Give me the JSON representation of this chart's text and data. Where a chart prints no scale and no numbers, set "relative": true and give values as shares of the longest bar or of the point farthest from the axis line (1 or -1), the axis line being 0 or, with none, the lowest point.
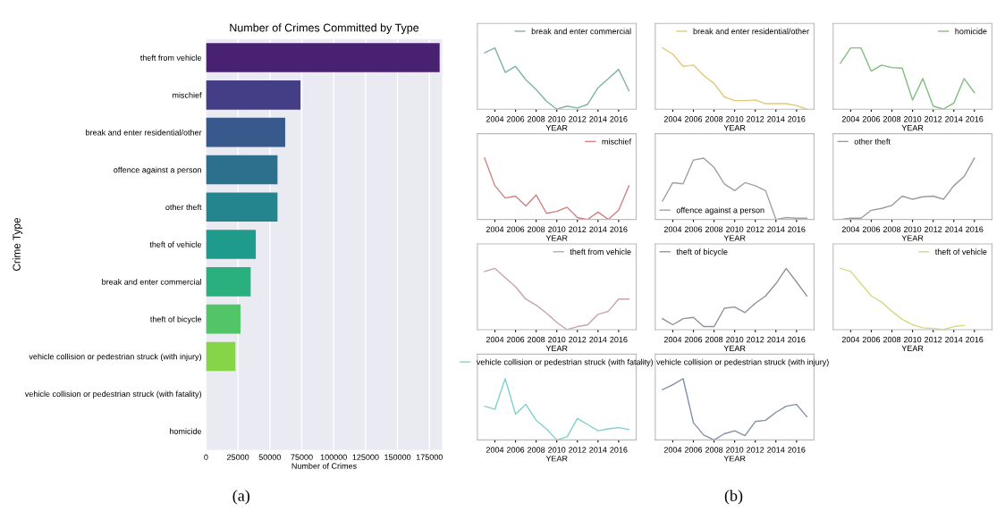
{
  "chart_data": [
    {
      "type": "bar",
      "orientation": "horizontal",
      "title": "Number of Crimes Committed by Type",
      "xlabel": "Number of Crimes",
      "ylabel": "Crime Type",
      "categories": [
        "theft from vehicle",
        "mischief",
        "break and enter residential/other",
        "offence against a person",
        "other theft",
        "theft of vehicle",
        "break and enter commercial",
        "theft of bicycle",
        "vehicle collision or pedestrian struck (with injury)",
        "vehicle collision or pedestrian struck (with fatality)",
        "homicide"
      ],
      "values": [
        183000,
        74000,
        62000,
        56000,
        56000,
        39000,
        35000,
        27000,
        23000,
        null,
        null
      ],
      "colors": [
        "#482173",
        "#433e85",
        "#38598c",
        "#2d708e",
        "#25858e",
        "#1e9b8a",
        "#2ab07f",
        "#52c569",
        "#86d549",
        "#c2df23",
        "#fde725"
      ],
      "xlim": [
        0,
        185000
      ],
      "xticks": [
        0,
        25000,
        50000,
        75000,
        100000,
        125000,
        150000,
        175000
      ],
      "grid": "x",
      "annotations": [
        "(a)"
      ]
    },
    {
      "type": "line",
      "relative": true,
      "xlabel": "YEAR",
      "xlim": [
        2002.3,
        2017.7
      ],
      "xticks": [
        2004,
        2006,
        2008,
        2010,
        2012,
        2014,
        2016
      ],
      "legend": "top right",
      "annotations": [
        "(b)"
      ],
      "series": [
        {
          "name": "break and enter commercial",
          "color": "#7fb3a8",
          "x": [
            2003,
            2004,
            2005,
            2006,
            2007,
            2008,
            2009,
            2010,
            2011,
            2012,
            2013,
            2014,
            2015,
            2016,
            2017
          ],
          "values": [
            0.92,
            1.0,
            0.6,
            0.7,
            0.48,
            0.32,
            0.13,
            0.0,
            0.05,
            0.02,
            0.08,
            0.35,
            0.5,
            0.65,
            0.3
          ]
        }
      ]
    },
    {
      "type": "line",
      "relative": true,
      "xlabel": "YEAR",
      "xlim": [
        2002.3,
        2017.7
      ],
      "xticks": [
        2004,
        2006,
        2008,
        2010,
        2012,
        2014,
        2016
      ],
      "legend": "top right",
      "series": [
        {
          "name": "break and enter residential/other",
          "color": "#e3c87a",
          "x": [
            2003,
            2004,
            2005,
            2006,
            2007,
            2008,
            2009,
            2010,
            2011,
            2012,
            2013,
            2014,
            2015,
            2016,
            2017
          ],
          "values": [
            1.0,
            0.9,
            0.7,
            0.72,
            0.55,
            0.42,
            0.2,
            0.14,
            0.14,
            0.15,
            0.09,
            0.09,
            0.09,
            0.06,
            0.0
          ]
        }
      ]
    },
    {
      "type": "line",
      "relative": true,
      "xlabel": "YEAR",
      "xlim": [
        2002.3,
        2017.7
      ],
      "xticks": [
        2004,
        2006,
        2008,
        2010,
        2012,
        2014,
        2016
      ],
      "legend": "top right",
      "series": [
        {
          "name": "homicide",
          "color": "#7fbf7f",
          "x": [
            2003,
            2004,
            2005,
            2006,
            2007,
            2008,
            2009,
            2010,
            2011,
            2012,
            2013,
            2014,
            2015,
            2016
          ],
          "values": [
            0.75,
            1.0,
            1.0,
            0.62,
            0.72,
            0.68,
            0.67,
            0.15,
            0.5,
            0.05,
            0.0,
            0.1,
            0.5,
            0.27
          ]
        }
      ]
    },
    {
      "type": "line",
      "relative": true,
      "xlabel": "YEAR",
      "xlim": [
        2002.3,
        2017.7
      ],
      "xticks": [
        2004,
        2006,
        2008,
        2010,
        2012,
        2014,
        2016
      ],
      "legend": "top right",
      "series": [
        {
          "name": "mischief",
          "color": "#d08080",
          "x": [
            2003,
            2004,
            2005,
            2006,
            2007,
            2008,
            2009,
            2010,
            2011,
            2012,
            2013,
            2014,
            2015,
            2016,
            2017
          ],
          "values": [
            1.0,
            0.55,
            0.35,
            0.38,
            0.22,
            0.4,
            0.1,
            0.13,
            0.2,
            0.03,
            0.0,
            0.12,
            0.0,
            0.15,
            0.55
          ]
        }
      ]
    },
    {
      "type": "line",
      "relative": true,
      "xlabel": "YEAR",
      "xlim": [
        2002.3,
        2017.7
      ],
      "xticks": [
        2004,
        2006,
        2008,
        2010,
        2012,
        2014,
        2016
      ],
      "legend": "bottom left",
      "series": [
        {
          "name": "offence against a person",
          "color": "#a0a0a0",
          "x": [
            2003,
            2004,
            2005,
            2006,
            2007,
            2008,
            2009,
            2010,
            2011,
            2012,
            2013,
            2014,
            2015,
            2016,
            2017
          ],
          "values": [
            0.3,
            0.6,
            0.58,
            0.97,
            1.0,
            0.85,
            0.58,
            0.47,
            0.6,
            0.55,
            0.47,
            0.0,
            0.03,
            0.02,
            0.02
          ]
        }
      ]
    },
    {
      "type": "line",
      "relative": true,
      "xlabel": "YEAR",
      "xlim": [
        2002.3,
        2017.7
      ],
      "xticks": [
        2004,
        2006,
        2008,
        2010,
        2012,
        2014,
        2016
      ],
      "legend": "top left",
      "series": [
        {
          "name": "other theft",
          "color": "#9a9a9a",
          "x": [
            2003,
            2004,
            2005,
            2006,
            2007,
            2008,
            2009,
            2010,
            2011,
            2012,
            2013,
            2014,
            2015,
            2016
          ],
          "values": [
            0.0,
            0.02,
            0.02,
            0.15,
            0.18,
            0.23,
            0.38,
            0.33,
            0.37,
            0.38,
            0.33,
            0.55,
            0.7,
            1.0
          ]
        }
      ]
    },
    {
      "type": "line",
      "relative": true,
      "xlabel": "YEAR",
      "xlim": [
        2002.3,
        2017.7
      ],
      "xticks": [
        2004,
        2006,
        2008,
        2010,
        2012,
        2014,
        2016
      ],
      "legend": "top right",
      "series": [
        {
          "name": "theft from vehicle",
          "color": "#c8a0b0",
          "x": [
            2003,
            2004,
            2005,
            2006,
            2007,
            2008,
            2009,
            2010,
            2011,
            2012,
            2013,
            2014,
            2015,
            2016,
            2017
          ],
          "values": [
            0.95,
            1.0,
            0.85,
            0.7,
            0.5,
            0.4,
            0.27,
            0.12,
            0.0,
            0.05,
            0.08,
            0.25,
            0.3,
            0.5,
            0.5
          ]
        }
      ]
    },
    {
      "type": "line",
      "relative": true,
      "xlabel": "YEAR",
      "xlim": [
        2002.3,
        2017.7
      ],
      "xticks": [
        2004,
        2006,
        2008,
        2010,
        2012,
        2014,
        2016
      ],
      "legend": "top left",
      "series": [
        {
          "name": "theft of bicycle",
          "color": "#9090a0",
          "x": [
            2003,
            2004,
            2005,
            2006,
            2007,
            2008,
            2009,
            2010,
            2011,
            2012,
            2013,
            2014,
            2015,
            2016,
            2017
          ],
          "values": [
            0.18,
            0.08,
            0.18,
            0.2,
            0.05,
            0.05,
            0.35,
            0.37,
            0.28,
            0.43,
            0.55,
            0.75,
            1.0,
            0.78,
            0.55
          ]
        }
      ]
    },
    {
      "type": "line",
      "relative": true,
      "xlabel": "YEAR",
      "xlim": [
        2002.3,
        2017.7
      ],
      "xticks": [
        2004,
        2006,
        2008,
        2010,
        2012,
        2014,
        2016
      ],
      "legend": "top right",
      "series": [
        {
          "name": "theft of vehicle",
          "color": "#d8d880",
          "x": [
            2003,
            2004,
            2005,
            2006,
            2007,
            2008,
            2009,
            2010,
            2011,
            2012,
            2013,
            2014,
            2015
          ],
          "values": [
            1.0,
            0.95,
            0.75,
            0.55,
            0.45,
            0.3,
            0.17,
            0.08,
            0.03,
            0.02,
            0.0,
            0.05,
            0.07
          ]
        }
      ]
    },
    {
      "type": "line",
      "relative": true,
      "xlabel": "YEAR",
      "xlim": [
        2002.3,
        2017.7
      ],
      "xticks": [
        2004,
        2006,
        2008,
        2010,
        2012,
        2014,
        2016
      ],
      "legend": "top",
      "series": [
        {
          "name": "vehicle collision or pedestrian struck (with fatality)",
          "color": "#80d0d0",
          "x": [
            2003,
            2004,
            2005,
            2006,
            2007,
            2008,
            2009,
            2010,
            2011,
            2012,
            2013,
            2014,
            2015,
            2016,
            2017
          ],
          "values": [
            0.55,
            0.5,
            1.0,
            0.42,
            0.58,
            0.32,
            0.18,
            0.0,
            0.05,
            0.35,
            0.25,
            0.15,
            0.18,
            0.2,
            0.17
          ]
        }
      ]
    },
    {
      "type": "line",
      "relative": true,
      "xlabel": "YEAR",
      "xlim": [
        2002.3,
        2017.7
      ],
      "xticks": [
        2004,
        2006,
        2008,
        2010,
        2012,
        2014,
        2016
      ],
      "legend": "top",
      "series": [
        {
          "name": "vehicle collision or pedestrian struck (with injury)",
          "color": "#8090a8",
          "x": [
            2003,
            2004,
            2005,
            2006,
            2007,
            2008,
            2009,
            2010,
            2011,
            2012,
            2013,
            2014,
            2015,
            2016,
            2017
          ],
          "values": [
            0.82,
            0.9,
            1.0,
            0.28,
            0.08,
            0.0,
            0.1,
            0.15,
            0.07,
            0.3,
            0.32,
            0.45,
            0.55,
            0.58,
            0.38
          ]
        }
      ]
    }
  ]
}
